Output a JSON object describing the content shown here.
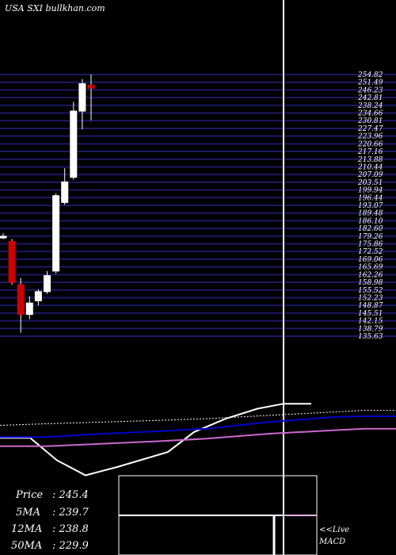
{
  "chart_data": {
    "type": "candlestick",
    "title": "USA SXI bullkhan.com",
    "price_axis": {
      "ylim": [
        135.5,
        250.0
      ],
      "tick_labels": [
        "254.82",
        "251.49",
        "246.23",
        "242.81",
        "238.24",
        "234.66",
        "230.81",
        "227.47",
        "223.96",
        "220.66",
        "217.16",
        "213.88",
        "210.44",
        "207.09",
        "203.51",
        "199.94",
        "196.44",
        "193.07",
        "189.48",
        "186.10",
        "182.60",
        "179.26",
        "175.86",
        "172.52",
        "169.06",
        "165.69",
        "162.26",
        "158.98",
        "155.52",
        "152.23",
        "148.87",
        "145.51",
        "142.15",
        "138.79",
        "135.63"
      ]
    },
    "candles": [
      {
        "open": 178.5,
        "high": 180.5,
        "low": 178.0,
        "close": 179.2
      },
      {
        "open": 177.0,
        "high": 178.0,
        "low": 158.0,
        "close": 159.0
      },
      {
        "open": 158.0,
        "high": 161.0,
        "low": 137.0,
        "close": 145.0
      },
      {
        "open": 145.0,
        "high": 153.0,
        "low": 143.0,
        "close": 150.0
      },
      {
        "open": 151.0,
        "high": 156.0,
        "low": 149.0,
        "close": 155.0
      },
      {
        "open": 155.0,
        "high": 164.0,
        "low": 154.0,
        "close": 162.0
      },
      {
        "open": 164.0,
        "high": 198.0,
        "low": 163.0,
        "close": 197.0
      },
      {
        "open": 194.0,
        "high": 209.0,
        "low": 193.0,
        "close": 203.0
      },
      {
        "open": 205.0,
        "high": 238.0,
        "low": 204.0,
        "close": 234.0
      },
      {
        "open": 234.0,
        "high": 248.0,
        "low": 226.0,
        "close": 246.0
      },
      {
        "open": 245.4,
        "high": 250.0,
        "low": 230.0,
        "close": 244.0
      }
    ],
    "lower_panel": {
      "series": [
        {
          "color": "#ffffff",
          "values": [
            55,
            55,
            28,
            10,
            20,
            38,
            62,
            78,
            90,
            96,
            96
          ],
          "style": "solid"
        },
        {
          "color": "#0000cc",
          "values": [
            56,
            56,
            60,
            63,
            66,
            70,
            74,
            77,
            80,
            81,
            81
          ],
          "style": "solid"
        },
        {
          "color": "#cc66cc",
          "values": [
            45,
            45,
            48,
            51,
            54,
            57,
            60,
            62,
            64,
            66,
            66
          ],
          "style": "solid"
        },
        {
          "color": "#ffffff",
          "values": [
            70,
            72,
            74,
            76,
            78,
            80,
            82,
            84,
            86,
            88,
            88
          ],
          "style": "dotted"
        }
      ]
    },
    "info_box": {
      "price_label": "Price",
      "price_value": ": 245.4",
      "ma5_label": "5MA",
      "ma5_value": ": 239.7",
      "ma12_label": "12MA",
      "ma12_value": ": 238.8",
      "ma50_label": "50MA",
      "ma50_value": ": 229.9"
    },
    "live_label": "<<Live",
    "macd_label": "MACD",
    "colors": {
      "background": "#000000",
      "grid": "#1a1a66",
      "bull": "#ffffff",
      "bear": "#cc0000",
      "wick": "#ffffff",
      "divider": "#ffffff"
    }
  }
}
